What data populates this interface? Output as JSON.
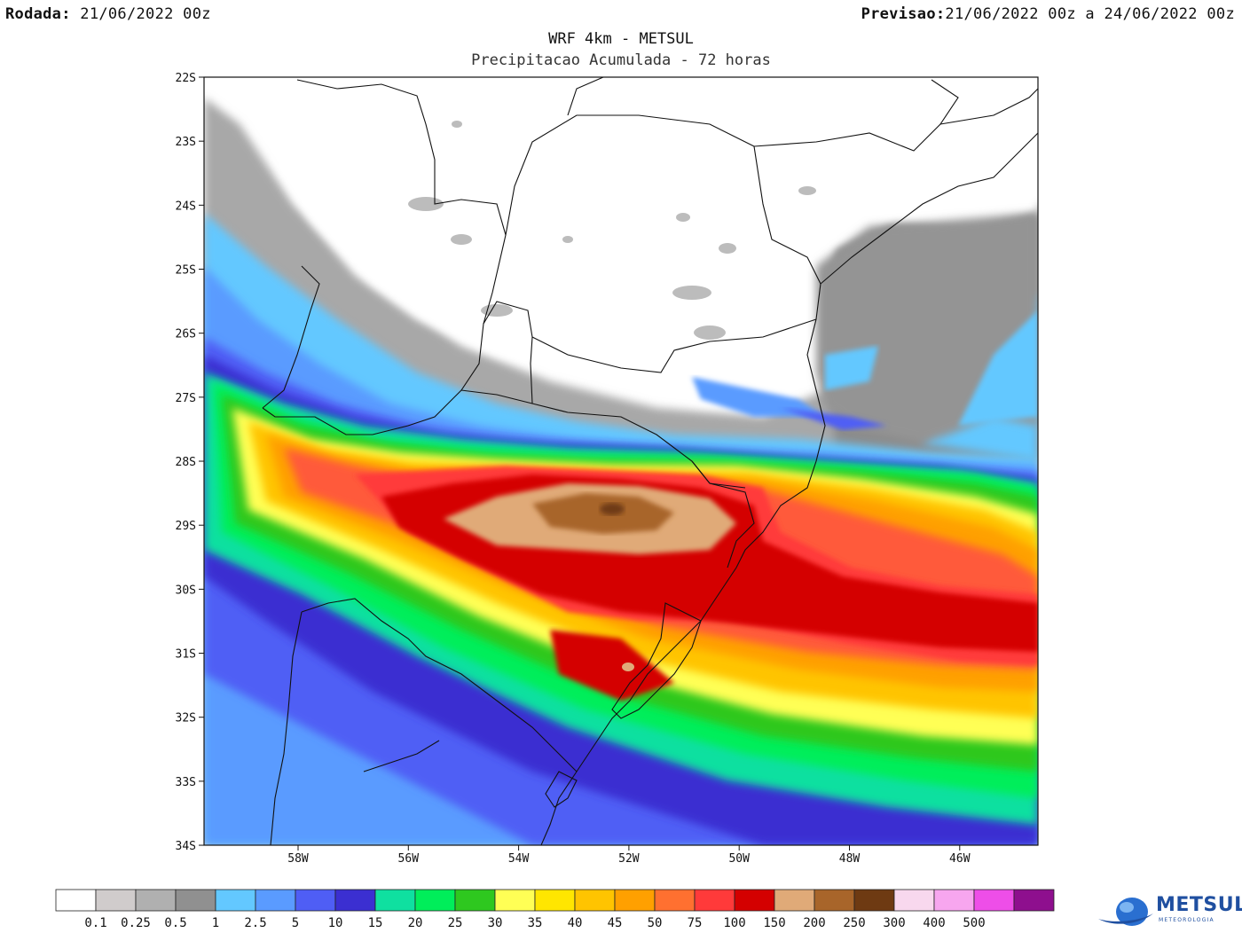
{
  "header": {
    "run_label": "Rodada:",
    "run_value": " 21/06/2022 00z",
    "forecast_label": "Previsao:",
    "forecast_value": "21/06/2022 00z a 24/06/2022 00z"
  },
  "title": {
    "line1": "WRF 4km - METSUL",
    "line2": "Precipitacao Acumulada - 72 horas"
  },
  "axes": {
    "lat_labels": [
      "22S",
      "23S",
      "24S",
      "25S",
      "26S",
      "27S",
      "28S",
      "29S",
      "30S",
      "31S",
      "32S",
      "33S",
      "34S"
    ],
    "lon_labels": [
      "58W",
      "56W",
      "54W",
      "52W",
      "50W",
      "48W",
      "46W"
    ]
  },
  "legend": {
    "bins": [
      {
        "label": "",
        "color": "#ffffff"
      },
      {
        "label": "0.1",
        "color": "#d0cccc"
      },
      {
        "label": "0.25",
        "color": "#b0b0b0"
      },
      {
        "label": "0.5",
        "color": "#909090"
      },
      {
        "label": "1",
        "color": "#63c8ff"
      },
      {
        "label": "2.5",
        "color": "#5a9bff"
      },
      {
        "label": "5",
        "color": "#4f5ef5"
      },
      {
        "label": "10",
        "color": "#3b2fd1"
      },
      {
        "label": "15",
        "color": "#0fe0a0"
      },
      {
        "label": "20",
        "color": "#00ee5a"
      },
      {
        "label": "25",
        "color": "#2ec81f"
      },
      {
        "label": "30",
        "color": "#ffff55"
      },
      {
        "label": "35",
        "color": "#ffe600"
      },
      {
        "label": "40",
        "color": "#ffc400"
      },
      {
        "label": "45",
        "color": "#ffa000"
      },
      {
        "label": "50",
        "color": "#ff7030"
      },
      {
        "label": "75",
        "color": "#ff3a3a"
      },
      {
        "label": "100",
        "color": "#d40000"
      },
      {
        "label": "150",
        "color": "#e0aa78"
      },
      {
        "label": "200",
        "color": "#a8652a"
      },
      {
        "label": "250",
        "color": "#6e3a12"
      },
      {
        "label": "300",
        "color": "#f8d8ee"
      },
      {
        "label": "400",
        "color": "#f7a6ef"
      },
      {
        "label": "500",
        "color": "#ee4ee8"
      },
      {
        "label": "",
        "color": "#8e0f8e"
      }
    ]
  },
  "logo": {
    "name": "METSUL",
    "sub": "METEOROLOGIA"
  }
}
